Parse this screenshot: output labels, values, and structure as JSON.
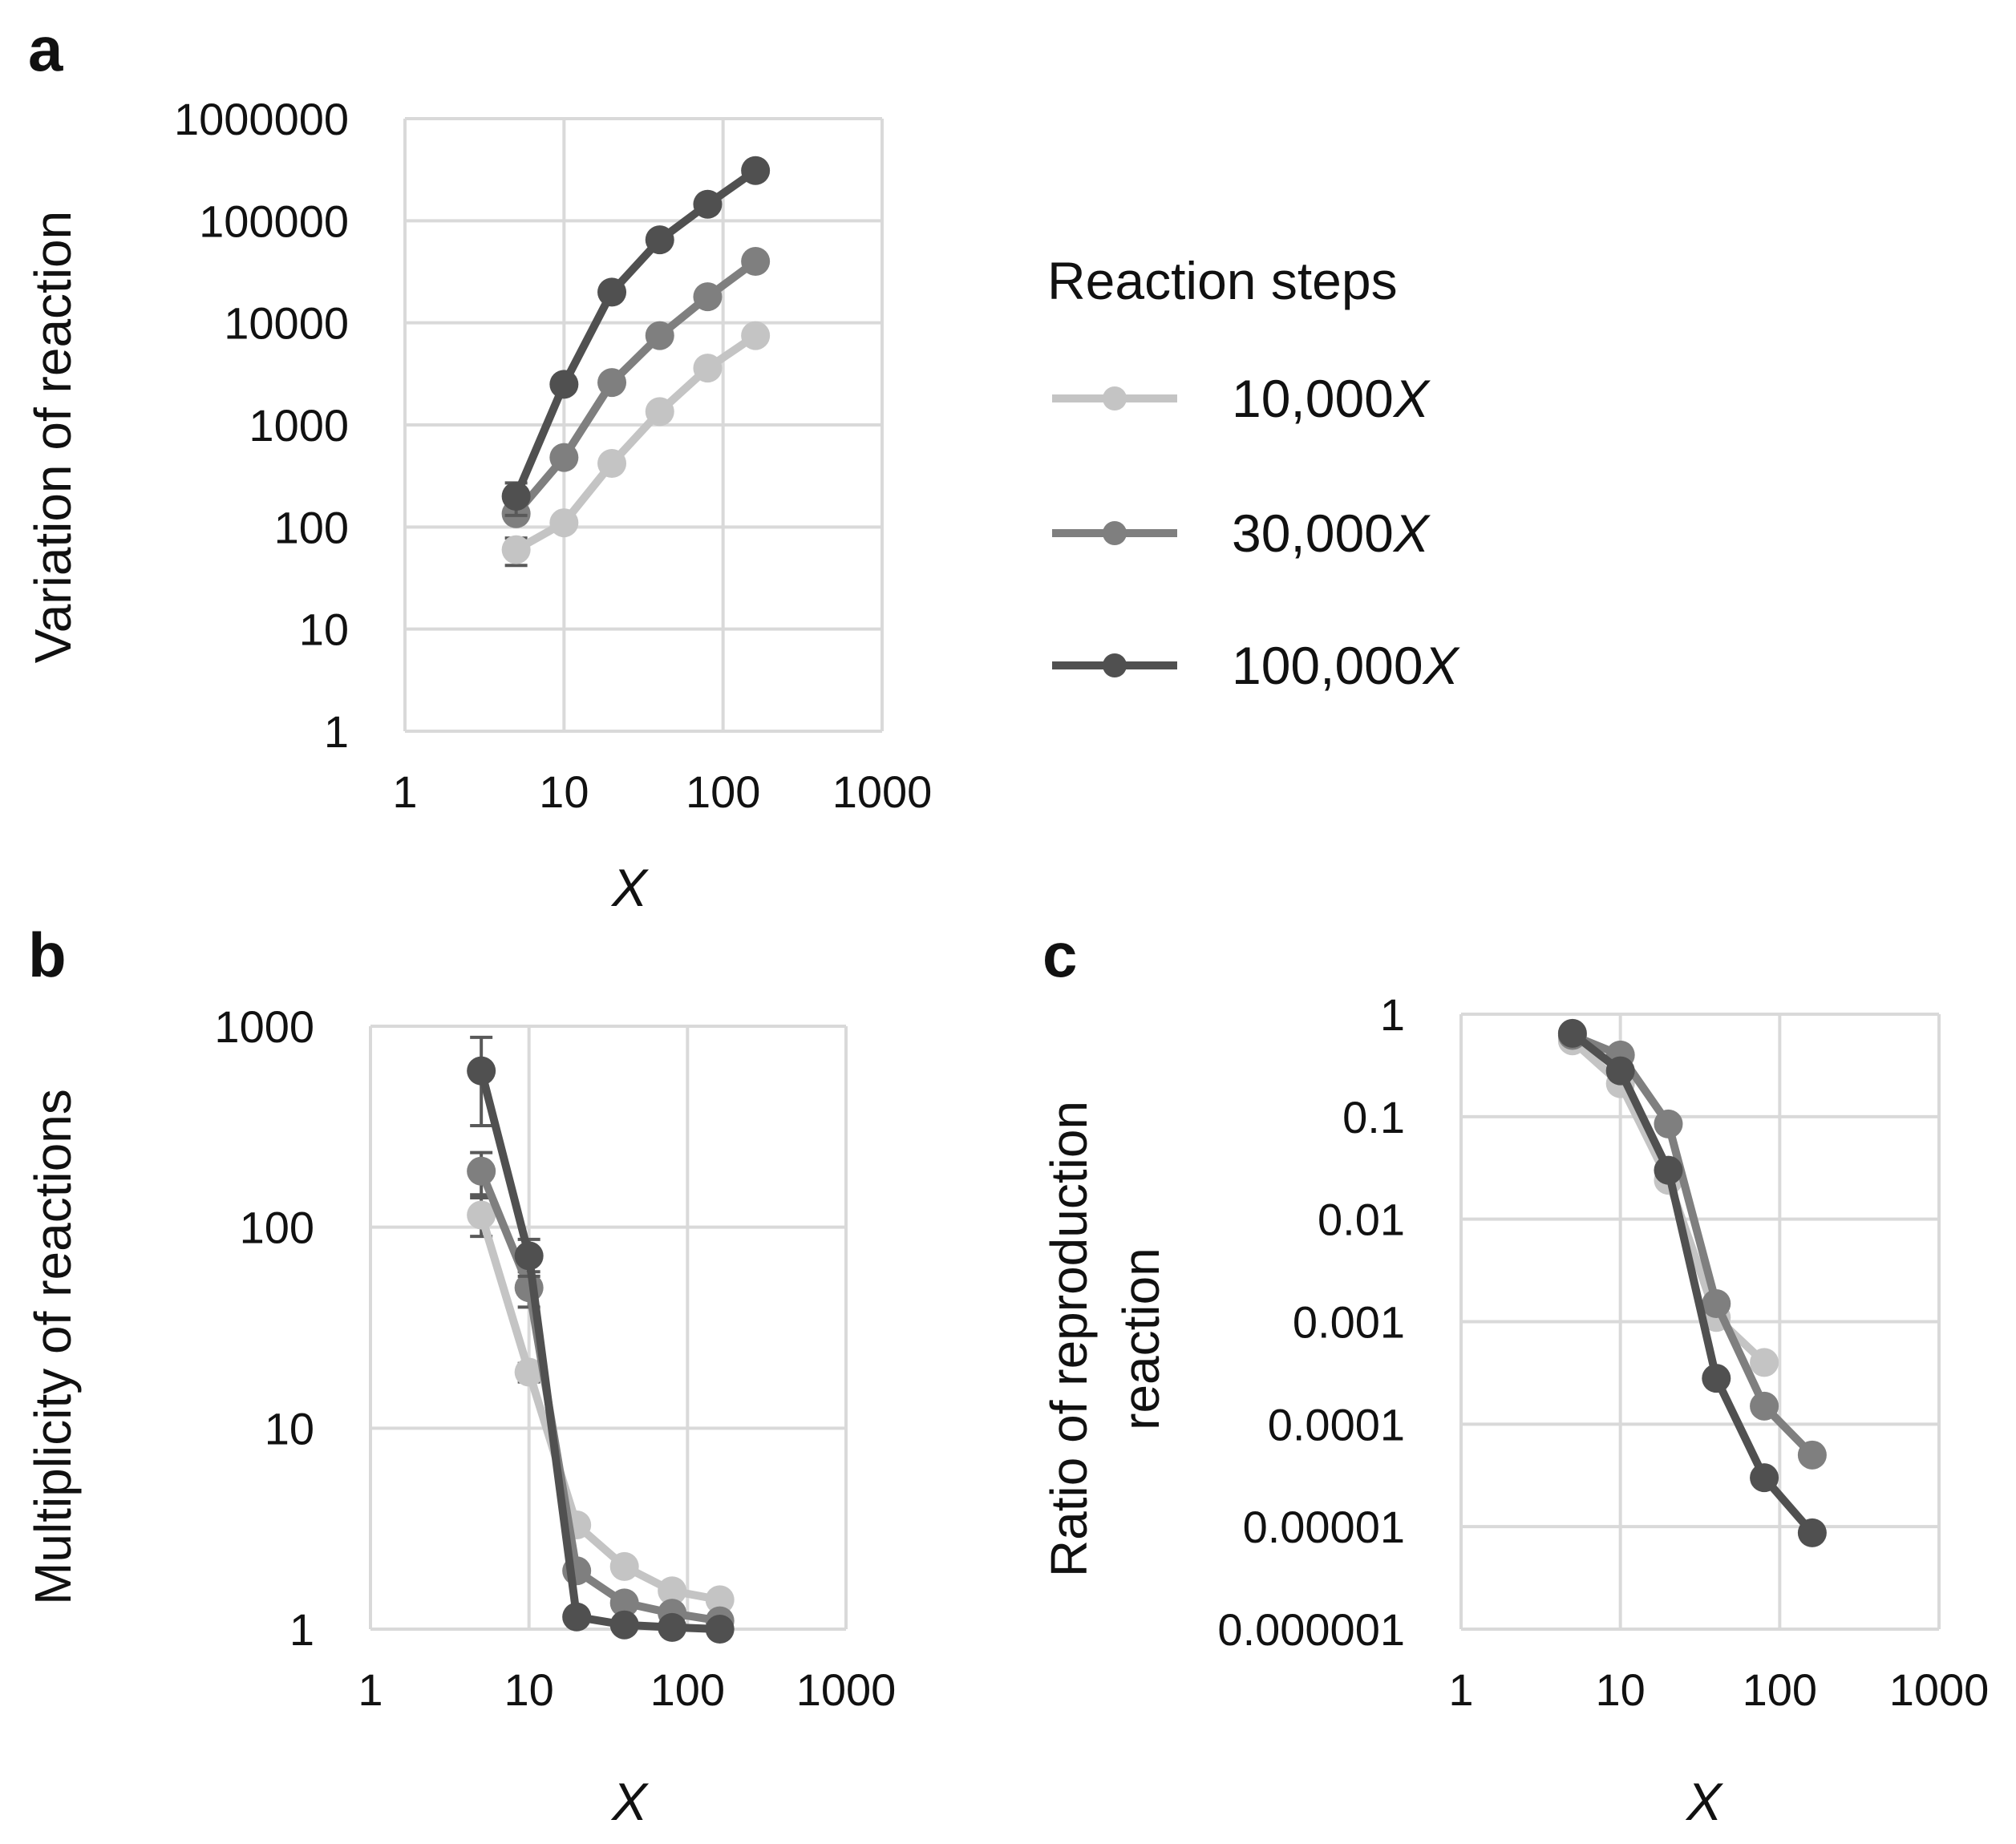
{
  "legend": {
    "title": "Reaction steps",
    "entries": [
      {
        "prefix": "10,000",
        "var": "X",
        "color": "#c4c4c4"
      },
      {
        "prefix": "30,000",
        "var": "X",
        "color": "#7f7f7f"
      },
      {
        "prefix": "100,000",
        "var": "X",
        "color": "#505050"
      }
    ]
  },
  "chart_data": [
    {
      "id": "a",
      "panel_label": "a",
      "type": "line",
      "scale": "log-log",
      "xlabel": "X",
      "ylabel_lines": [
        "Variation of reaction"
      ],
      "xlim": [
        1,
        1000
      ],
      "ylim": [
        1,
        1000000
      ],
      "x_ticks": [
        1,
        10,
        100,
        1000
      ],
      "x_tick_labels": [
        "1",
        "10",
        "100",
        "1000"
      ],
      "y_ticks": [
        1,
        10,
        100,
        1000,
        10000,
        100000,
        1000000
      ],
      "y_tick_labels": [
        "1",
        "10",
        "100",
        "1000",
        "10000",
        "100000",
        "1000000"
      ],
      "series": [
        {
          "name": "10,000X",
          "color": "#c4c4c4",
          "x": [
            5,
            10,
            20,
            40,
            80,
            160
          ],
          "values": [
            60,
            110,
            420,
            1350,
            3600,
            7500
          ],
          "err": [
            18,
            0,
            0,
            0,
            0,
            0
          ]
        },
        {
          "name": "30,000X",
          "color": "#7f7f7f",
          "x": [
            5,
            10,
            20,
            40,
            80,
            160
          ],
          "values": [
            135,
            480,
            2600,
            7500,
            18000,
            40000
          ],
          "err": [
            0,
            0,
            0,
            0,
            0,
            0
          ]
        },
        {
          "name": "100,000X",
          "color": "#505050",
          "x": [
            5,
            10,
            20,
            40,
            80,
            160
          ],
          "values": [
            200,
            2500,
            20000,
            65000,
            145000,
            310000
          ],
          "err": [
            70,
            0,
            0,
            0,
            0,
            0
          ]
        }
      ]
    },
    {
      "id": "b",
      "panel_label": "b",
      "type": "line",
      "scale": "log-log",
      "xlabel": "X",
      "ylabel_lines": [
        "Multiplicity of reactions"
      ],
      "xlim": [
        1,
        1000
      ],
      "ylim": [
        1,
        1000
      ],
      "x_ticks": [
        1,
        10,
        100,
        1000
      ],
      "x_tick_labels": [
        "1",
        "10",
        "100",
        "1000"
      ],
      "y_ticks": [
        1,
        10,
        100,
        1000
      ],
      "y_tick_labels": [
        "1",
        "10",
        "100",
        "1000"
      ],
      "series": [
        {
          "name": "10,000X",
          "color": "#c4c4c4",
          "x": [
            5,
            10,
            20,
            40,
            80,
            160
          ],
          "values": [
            115,
            19,
            3.3,
            2.05,
            1.55,
            1.4
          ],
          "err": [
            25,
            2,
            0,
            0,
            0,
            0
          ]
        },
        {
          "name": "30,000X",
          "color": "#7f7f7f",
          "x": [
            5,
            10,
            20,
            40,
            80,
            160
          ],
          "values": [
            190,
            50,
            1.95,
            1.35,
            1.2,
            1.1
          ],
          "err": [
            45,
            10,
            0,
            0,
            0,
            0
          ]
        },
        {
          "name": "100,000X",
          "color": "#505050",
          "x": [
            5,
            10,
            20,
            40,
            80,
            160
          ],
          "values": [
            600,
            72,
            1.15,
            1.05,
            1.02,
            1.0
          ],
          "err": [
            280,
            15,
            0,
            0,
            0,
            0
          ]
        }
      ]
    },
    {
      "id": "c",
      "panel_label": "c",
      "type": "line",
      "scale": "log-log",
      "xlabel": "X",
      "ylabel_lines": [
        "Ratio of reproduction",
        "reaction"
      ],
      "xlim": [
        1,
        1000
      ],
      "ylim": [
        1e-06,
        1
      ],
      "x_ticks": [
        1,
        10,
        100,
        1000
      ],
      "x_tick_labels": [
        "1",
        "10",
        "100",
        "1000"
      ],
      "y_ticks": [
        1e-06,
        1e-05,
        0.0001,
        0.001,
        0.01,
        0.1,
        1
      ],
      "y_tick_labels": [
        "0.000001",
        "0.00001",
        "0.0001",
        "0.001",
        "0.01",
        "0.1",
        "1"
      ],
      "series": [
        {
          "name": "10,000X",
          "color": "#c4c4c4",
          "x": [
            5,
            10,
            20,
            40,
            80
          ],
          "values": [
            0.55,
            0.21,
            0.024,
            0.0011,
            0.0004
          ],
          "err": [
            0,
            0,
            0,
            0,
            0
          ]
        },
        {
          "name": "30,000X",
          "color": "#7f7f7f",
          "x": [
            5,
            10,
            20,
            40,
            80,
            160
          ],
          "values": [
            0.62,
            0.4,
            0.085,
            0.0015,
            0.00015,
            5e-05
          ],
          "err": [
            0,
            0,
            0,
            0,
            0,
            0
          ]
        },
        {
          "name": "100,000X",
          "color": "#505050",
          "x": [
            5,
            10,
            20,
            40,
            80,
            160
          ],
          "values": [
            0.65,
            0.28,
            0.03,
            0.00028,
            3e-05,
            8.7e-06
          ],
          "err": [
            0,
            0,
            0,
            0,
            0,
            0
          ]
        }
      ]
    }
  ]
}
